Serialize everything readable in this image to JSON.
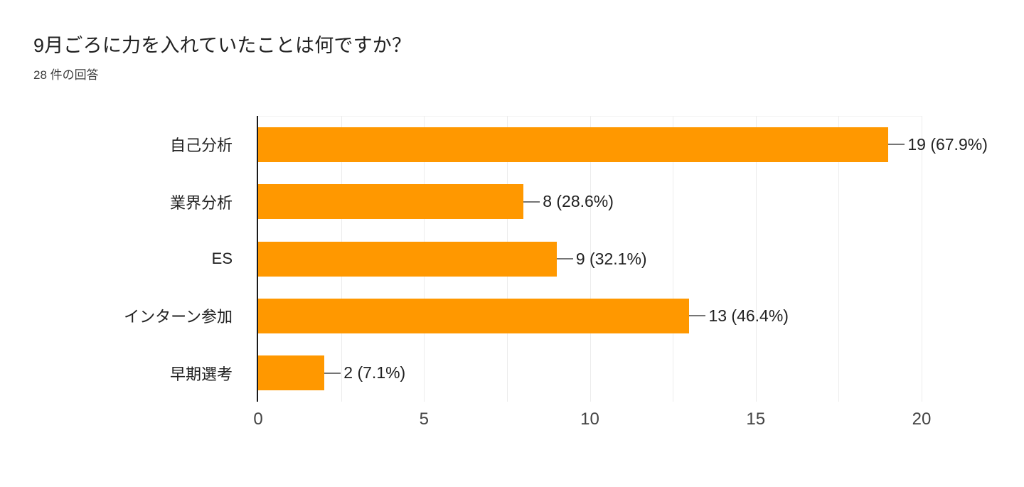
{
  "header": {
    "title": "9月ごろに力を入れていたことは何ですか？",
    "subtitle": "28 件の回答"
  },
  "chart_data": {
    "type": "bar",
    "orientation": "horizontal",
    "title": "9月ごろに力を入れていたことは何ですか？",
    "subtitle": "28 件の回答",
    "response_count": 28,
    "categories": [
      "自己分析",
      "業界分析",
      "ES",
      "インターン参加",
      "早期選考"
    ],
    "values": [
      19,
      8,
      9,
      13,
      2
    ],
    "percentages": [
      67.9,
      28.6,
      32.1,
      46.4,
      7.1
    ],
    "value_labels": [
      "19 (67.9%)",
      "8 (28.6%)",
      "9 (32.1%)",
      "13 (46.4%)",
      "2 (7.1%)"
    ],
    "xlabel": "",
    "ylabel": "",
    "xlim": [
      0,
      20
    ],
    "x_ticks": [
      0,
      5,
      10,
      15,
      20
    ],
    "grid_step": 2.5,
    "grid": true,
    "legend_position": "none",
    "colors": {
      "bar": "#ff9800",
      "axis_line": "#1a1a1a",
      "gridline": "#ececec",
      "connector": "#757575",
      "value_label": "#212121",
      "category_label": "#212121",
      "tick_label": "#434343"
    }
  }
}
